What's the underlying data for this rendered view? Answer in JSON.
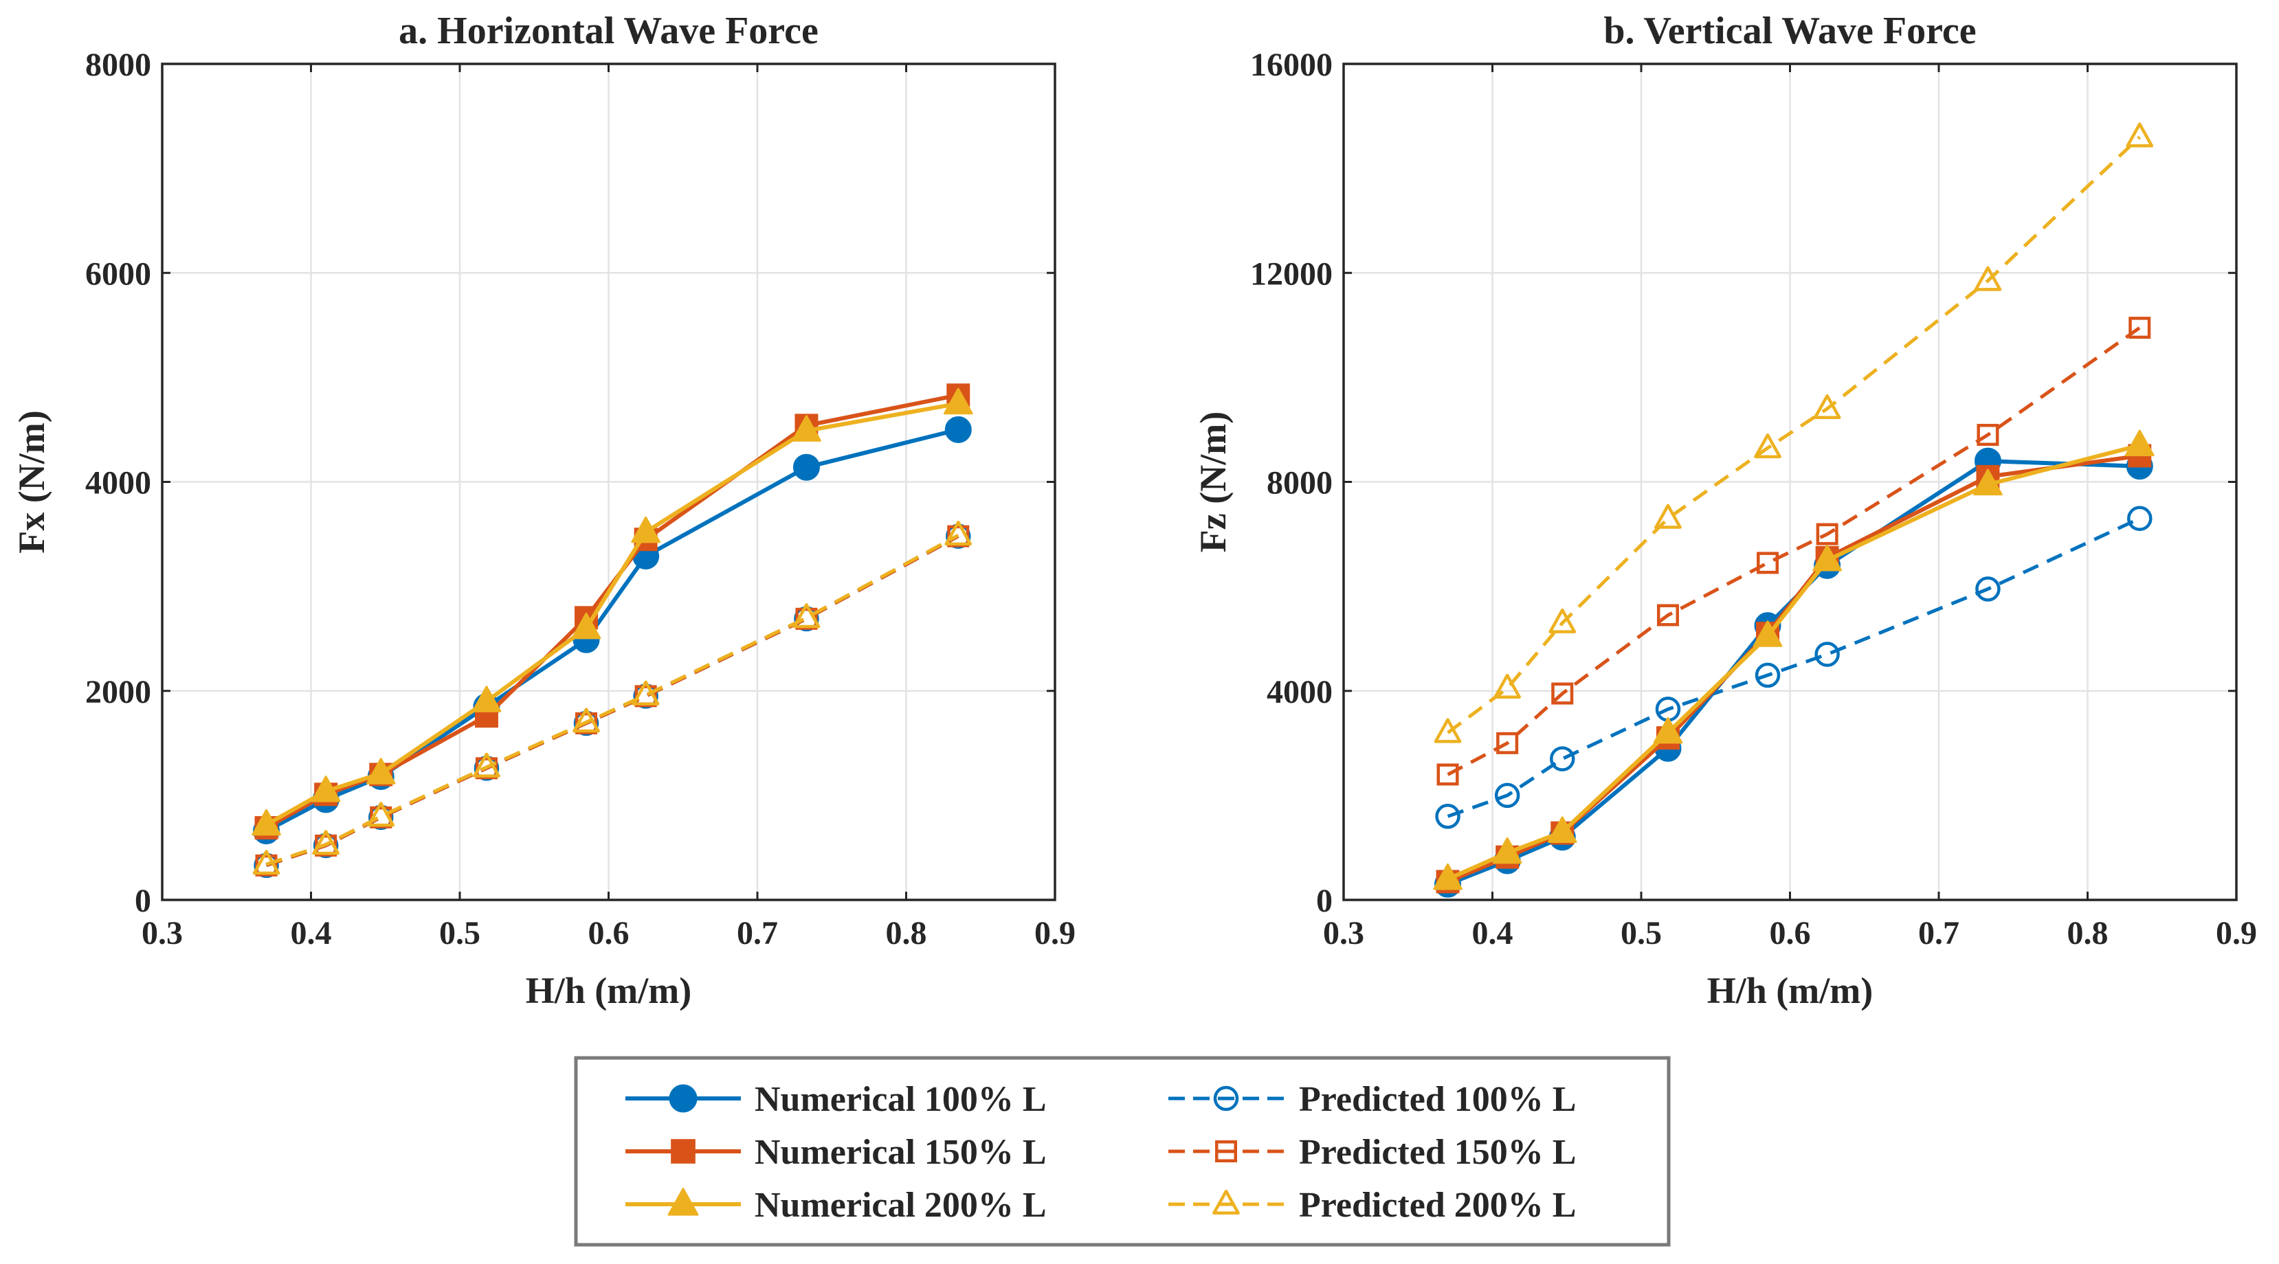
{
  "chart_data": [
    {
      "type": "line",
      "title": "a. Horizontal Wave Force",
      "xlabel": "H/h (m/m)",
      "ylabel": "Fx (N/m)",
      "xlim": [
        0.3,
        0.9
      ],
      "ylim": [
        0,
        8000
      ],
      "xticks": [
        "0.3",
        "0.4",
        "0.5",
        "0.6",
        "0.7",
        "0.8",
        "0.9"
      ],
      "yticks": [
        "0",
        "2000",
        "4000",
        "6000",
        "8000"
      ],
      "grid": true,
      "x": [
        0.37,
        0.41,
        0.447,
        0.518,
        0.585,
        0.625,
        0.733,
        0.835
      ],
      "series": [
        {
          "name": "Numerical 100% L",
          "values": [
            660,
            960,
            1180,
            1850,
            2490,
            3290,
            4140,
            4500
          ]
        },
        {
          "name": "Numerical 150% L",
          "values": [
            690,
            1010,
            1200,
            1760,
            2700,
            3450,
            4540,
            4830
          ]
        },
        {
          "name": "Numerical 200% L",
          "values": [
            720,
            1040,
            1210,
            1900,
            2600,
            3520,
            4490,
            4750
          ]
        },
        {
          "name": "Predicted 100% L",
          "values": [
            330,
            520,
            790,
            1260,
            1690,
            1950,
            2690,
            3480
          ]
        },
        {
          "name": "Predicted 150% L",
          "values": [
            330,
            520,
            790,
            1260,
            1690,
            1950,
            2690,
            3480
          ]
        },
        {
          "name": "Predicted 200% L",
          "values": [
            340,
            530,
            800,
            1270,
            1700,
            1960,
            2700,
            3490
          ]
        }
      ]
    },
    {
      "type": "line",
      "title": "b. Vertical Wave Force",
      "xlabel": "H/h (m/m)",
      "ylabel": "Fz (N/m)",
      "xlim": [
        0.3,
        0.9
      ],
      "ylim": [
        0,
        16000
      ],
      "xticks": [
        "0.3",
        "0.4",
        "0.5",
        "0.6",
        "0.7",
        "0.8",
        "0.9"
      ],
      "yticks": [
        "0",
        "4000",
        "8000",
        "12000",
        "16000"
      ],
      "grid": true,
      "x": [
        0.37,
        0.41,
        0.447,
        0.518,
        0.585,
        0.625,
        0.733,
        0.835
      ],
      "series": [
        {
          "name": "Numerical 100% L",
          "values": [
            300,
            750,
            1200,
            2900,
            5250,
            6400,
            8400,
            8300
          ]
        },
        {
          "name": "Numerical 150% L",
          "values": [
            350,
            820,
            1280,
            3100,
            5100,
            6550,
            8100,
            8500
          ]
        },
        {
          "name": "Numerical 200% L",
          "values": [
            400,
            900,
            1300,
            3200,
            5050,
            6500,
            7950,
            8700
          ]
        },
        {
          "name": "Predicted 100% L",
          "values": [
            1600,
            2000,
            2700,
            3650,
            4300,
            4700,
            5950,
            7300
          ]
        },
        {
          "name": "Predicted 150% L",
          "values": [
            2400,
            3000,
            3950,
            5450,
            6450,
            7000,
            8900,
            10950
          ]
        },
        {
          "name": "Predicted 200% L",
          "values": [
            3200,
            4050,
            5300,
            7300,
            8650,
            9400,
            11850,
            14600
          ]
        }
      ]
    }
  ],
  "legend": {
    "placement": "bottom-center",
    "entries": [
      {
        "label": "Numerical 100% L",
        "color": "#0072BD",
        "marker": "circle",
        "filled": true,
        "dashed": false
      },
      {
        "label": "Numerical 150% L",
        "color": "#D95319",
        "marker": "square",
        "filled": true,
        "dashed": false
      },
      {
        "label": "Numerical 200% L",
        "color": "#EDB120",
        "marker": "triangle",
        "filled": true,
        "dashed": false
      },
      {
        "label": "Predicted 100% L",
        "color": "#0072BD",
        "marker": "circle",
        "filled": false,
        "dashed": true
      },
      {
        "label": "Predicted 150% L",
        "color": "#D95319",
        "marker": "square",
        "filled": false,
        "dashed": true
      },
      {
        "label": "Predicted 200% L",
        "color": "#EDB120",
        "marker": "triangle",
        "filled": false,
        "dashed": true
      }
    ]
  },
  "colors": {
    "blue": "#0072BD",
    "orange": "#D95319",
    "yellow": "#EDB120",
    "axis": "#262626",
    "grid": "#e3e3e3"
  }
}
